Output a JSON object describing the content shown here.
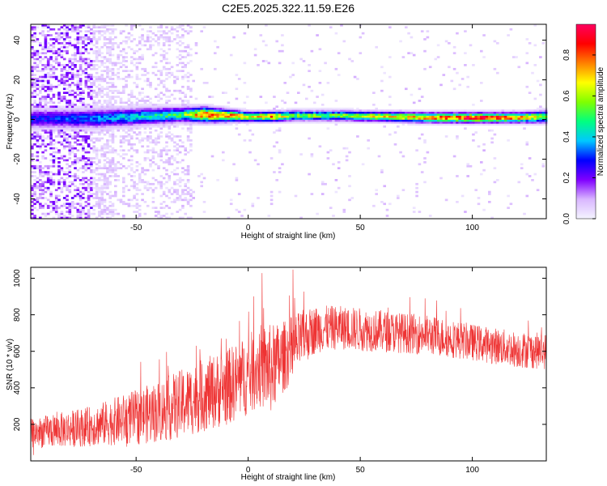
{
  "figure": {
    "title": "C2E5.2025.322.11.59.E26"
  },
  "chart_data": [
    {
      "type": "heatmap",
      "title": "",
      "xlabel": "Height of straight line (km)",
      "ylabel": "Frequency (Hz)",
      "xlim": [
        -97,
        133
      ],
      "ylim": [
        -50,
        48
      ],
      "xticks": [
        -50,
        0,
        50,
        100
      ],
      "yticks": [
        -40,
        -20,
        0,
        20,
        40
      ],
      "grid": false,
      "colorbar": {
        "label": "Normalized spectral amplitude",
        "range": [
          0,
          0.95
        ],
        "ticks": [
          0.0,
          0.2,
          0.4,
          0.6,
          0.8
        ],
        "colormap": [
          "#f4f4ff",
          "#d9b6ff",
          "#8000ff",
          "#0000ff",
          "#00c8ff",
          "#00ff80",
          "#80ff00",
          "#ffff00",
          "#ff8000",
          "#ff0000",
          "#ff0060"
        ]
      },
      "ridge": {
        "description_points_x": [
          -95,
          -70,
          -50,
          -30,
          -20,
          -10,
          0,
          10,
          20,
          40,
          60,
          80,
          100,
          120,
          133
        ],
        "center_hz": [
          0,
          0,
          1,
          2,
          2,
          1.5,
          1,
          1,
          1.5,
          1.5,
          1,
          0.5,
          0.5,
          0.5,
          1
        ],
        "peak_amplitude": [
          0.3,
          0.35,
          0.45,
          0.55,
          0.9,
          0.85,
          0.7,
          0.8,
          0.6,
          0.6,
          0.7,
          0.8,
          0.95,
          0.8,
          0.6
        ],
        "band_halfwidth_hz": [
          4,
          4,
          3.5,
          3,
          3,
          2.5,
          2,
          2,
          2,
          2,
          2,
          2,
          2,
          2,
          2.5
        ]
      }
    },
    {
      "type": "line",
      "title": "",
      "xlabel": "Height of straight line (km)",
      "ylabel": "SNR (10 * v/v)",
      "xlim": [
        -97,
        133
      ],
      "ylim": [
        0,
        1060
      ],
      "xticks": [
        -50,
        0,
        50,
        100
      ],
      "yticks": [
        200,
        400,
        600,
        800,
        1000
      ],
      "grid": false,
      "series": [
        {
          "color": "#ee3333",
          "x": [
            -97,
            -90,
            -80,
            -70,
            -60,
            -50,
            -40,
            -30,
            -20,
            -10,
            0,
            5,
            10,
            15,
            20,
            25,
            30,
            40,
            50,
            60,
            70,
            80,
            90,
            100,
            110,
            120,
            133
          ],
          "mean": [
            150,
            160,
            175,
            190,
            215,
            240,
            270,
            310,
            360,
            400,
            470,
            520,
            500,
            560,
            620,
            680,
            720,
            730,
            720,
            710,
            700,
            690,
            670,
            650,
            630,
            610,
            600
          ],
          "spread": [
            80,
            90,
            100,
            110,
            130,
            150,
            170,
            190,
            200,
            210,
            220,
            230,
            250,
            200,
            180,
            150,
            130,
            120,
            120,
            115,
            110,
            110,
            105,
            100,
            100,
            100,
            100
          ]
        }
      ]
    }
  ]
}
